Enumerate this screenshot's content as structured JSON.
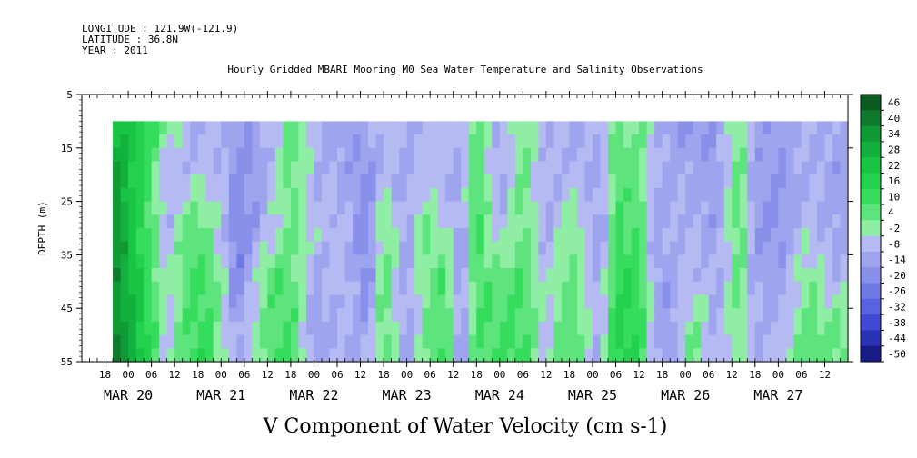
{
  "header": {
    "longitude": "LONGITUDE : 121.9W(-121.9)",
    "latitude": "LATITUDE : 36.8N",
    "year": "YEAR : 2011"
  },
  "chart_data": {
    "type": "heatmap",
    "title": "Hourly Gridded MBARI Mooring M0 Sea Water Temperature and Salinity Observations",
    "subtitle": "V Component of Water Velocity (cm s-1)",
    "ylabel": "DEPTH (m)",
    "ylim": [
      55,
      5
    ],
    "yticks": [
      5,
      15,
      25,
      35,
      45,
      55
    ],
    "xlim": [
      "2011-03-19T12:00",
      "2011-03-27T18:00"
    ],
    "x_hour_ticks": [
      "18",
      "00",
      "06",
      "12",
      "18",
      "00",
      "06",
      "12",
      "18",
      "00",
      "06",
      "12",
      "18",
      "00",
      "06",
      "12",
      "18",
      "00",
      "06",
      "12",
      "18",
      "00",
      "06",
      "12",
      "18",
      "00",
      "06",
      "12",
      "18",
      "00",
      "06",
      "12"
    ],
    "x_date_labels": [
      "MAR 20",
      "MAR 21",
      "MAR 22",
      "MAR 23",
      "MAR 24",
      "MAR 25",
      "MAR 26",
      "MAR 27"
    ],
    "data_start": "2011-03-19T20:00",
    "depth_range": [
      10,
      55
    ],
    "colorbar": {
      "labels": [
        "46",
        "40",
        "34",
        "28",
        "22",
        "16",
        "10",
        "4",
        "-2",
        "-8",
        "-14",
        "-20",
        "-26",
        "-32",
        "-38",
        "-44",
        "-50"
      ],
      "range": [
        -50,
        52
      ]
    },
    "time_anchors": [
      {
        "t": "03-19 20:00",
        "v": [
          28,
          38,
          42,
          40,
          45
        ]
      },
      {
        "t": "03-20 04:00",
        "v": [
          18,
          16,
          14,
          18,
          22
        ]
      },
      {
        "t": "03-20 10:00",
        "v": [
          8,
          -10,
          -8,
          -4,
          -6
        ]
      },
      {
        "t": "03-20 16:00",
        "v": [
          -10,
          -6,
          8,
          10,
          12
        ]
      },
      {
        "t": "03-20 20:00",
        "v": [
          -8,
          -4,
          4,
          12,
          14
        ]
      },
      {
        "t": "03-21 01:00",
        "v": [
          -6,
          -8,
          -6,
          -4,
          -2
        ]
      },
      {
        "t": "03-21 04:00",
        "v": [
          -14,
          -18,
          -22,
          -20,
          -10
        ]
      },
      {
        "t": "03-21 12:00",
        "v": [
          -10,
          -8,
          -6,
          8,
          6
        ]
      },
      {
        "t": "03-21 18:00",
        "v": [
          10,
          8,
          6,
          10,
          12
        ]
      },
      {
        "t": "03-22 00:00",
        "v": [
          -8,
          -6,
          -4,
          -10,
          -12
        ]
      },
      {
        "t": "03-22 08:00",
        "v": [
          -12,
          -10,
          -6,
          -4,
          -8
        ]
      },
      {
        "t": "03-22 14:00",
        "v": [
          -10,
          -16,
          -20,
          -18,
          -10
        ]
      },
      {
        "t": "03-22 18:00",
        "v": [
          -4,
          -6,
          6,
          8,
          10
        ]
      },
      {
        "t": "03-23 00:00",
        "v": [
          -8,
          -10,
          -12,
          -14,
          -12
        ]
      },
      {
        "t": "03-23 04:00",
        "v": [
          -6,
          -4,
          6,
          4,
          2
        ]
      },
      {
        "t": "03-23 10:00",
        "v": [
          -4,
          -6,
          -2,
          10,
          12
        ]
      },
      {
        "t": "03-23 14:00",
        "v": [
          -8,
          -10,
          -12,
          -16,
          -14
        ]
      },
      {
        "t": "03-23 18:00",
        "v": [
          10,
          12,
          14,
          10,
          8
        ]
      },
      {
        "t": "03-24 00:00",
        "v": [
          -10,
          -12,
          -8,
          6,
          10
        ]
      },
      {
        "t": "03-24 06:00",
        "v": [
          2,
          6,
          8,
          10,
          12
        ]
      },
      {
        "t": "03-24 12:00",
        "v": [
          -6,
          -8,
          -10,
          -6,
          -4
        ]
      },
      {
        "t": "03-24 18:00",
        "v": [
          -10,
          -6,
          4,
          8,
          10
        ]
      },
      {
        "t": "03-25 02:00",
        "v": [
          -8,
          -10,
          -12,
          -10,
          -8
        ]
      },
      {
        "t": "03-25 06:00",
        "v": [
          6,
          8,
          10,
          16,
          18
        ]
      },
      {
        "t": "03-25 12:00",
        "v": [
          4,
          6,
          10,
          14,
          16
        ]
      },
      {
        "t": "03-25 16:00",
        "v": [
          -4,
          -8,
          -12,
          -10,
          -6
        ]
      },
      {
        "t": "03-25 20:00",
        "v": [
          -12,
          -10,
          -8,
          -12,
          -14
        ]
      },
      {
        "t": "03-26 02:00",
        "v": [
          -14,
          -10,
          -8,
          -4,
          6
        ]
      },
      {
        "t": "03-26 08:00",
        "v": [
          -12,
          -14,
          -12,
          -10,
          -8
        ]
      },
      {
        "t": "03-26 14:00",
        "v": [
          4,
          8,
          10,
          6,
          4
        ]
      },
      {
        "t": "03-26 18:00",
        "v": [
          -10,
          -12,
          -14,
          -10,
          -8
        ]
      },
      {
        "t": "03-27 00:00",
        "v": [
          -12,
          -14,
          -16,
          -12,
          -6
        ]
      },
      {
        "t": "03-27 08:00",
        "v": [
          -8,
          -6,
          -4,
          4,
          8
        ]
      },
      {
        "t": "03-27 14:00",
        "v": [
          -10,
          -12,
          -10,
          -6,
          6
        ]
      }
    ]
  }
}
